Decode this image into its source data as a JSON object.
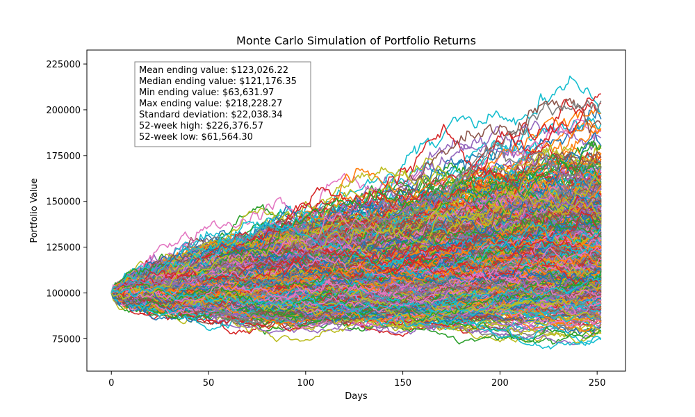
{
  "chart_data": {
    "type": "line",
    "title": "Monte Carlo Simulation of Portfolio Returns",
    "xlabel": "Days",
    "ylabel": "Portfolio Value",
    "xlim": [
      -12.6,
      264.6
    ],
    "ylim": [
      57323,
      232618
    ],
    "xticks": [
      0,
      50,
      100,
      150,
      200,
      250
    ],
    "yticks": [
      75000,
      100000,
      125000,
      150000,
      175000,
      200000,
      225000
    ],
    "xtick_labels": [
      "0",
      "50",
      "100",
      "150",
      "200",
      "250"
    ],
    "ytick_labels": [
      "75000",
      "100000",
      "125000",
      "150000",
      "175000",
      "200000",
      "225000"
    ],
    "grid": false,
    "legend": "none",
    "simulation": {
      "start_value": 100000,
      "days": 252,
      "num_paths": 1000,
      "mean_ending_value": 123026.22,
      "median_ending_value": 121176.35,
      "min_ending_value": 63631.97,
      "max_ending_value": 218228.27,
      "std_dev_ending_value": 22038.34,
      "high_52_week": 226376.57,
      "low_52_week": 61564.3
    },
    "colors": [
      "#1f77b4",
      "#ff7f0e",
      "#2ca02c",
      "#d62728",
      "#9467bd",
      "#8c564b",
      "#e377c2",
      "#7f7f7f",
      "#bcbd22",
      "#17becf"
    ],
    "stats_box_lines": [
      "Mean ending value: $123,026.22",
      "Median ending value: $121,176.35",
      "Min ending value: $63,631.97",
      "Max ending value: $218,228.27",
      "Standard deviation: $22,038.34",
      "52-week high: $226,376.57",
      "52-week low: $61,564.30"
    ]
  }
}
